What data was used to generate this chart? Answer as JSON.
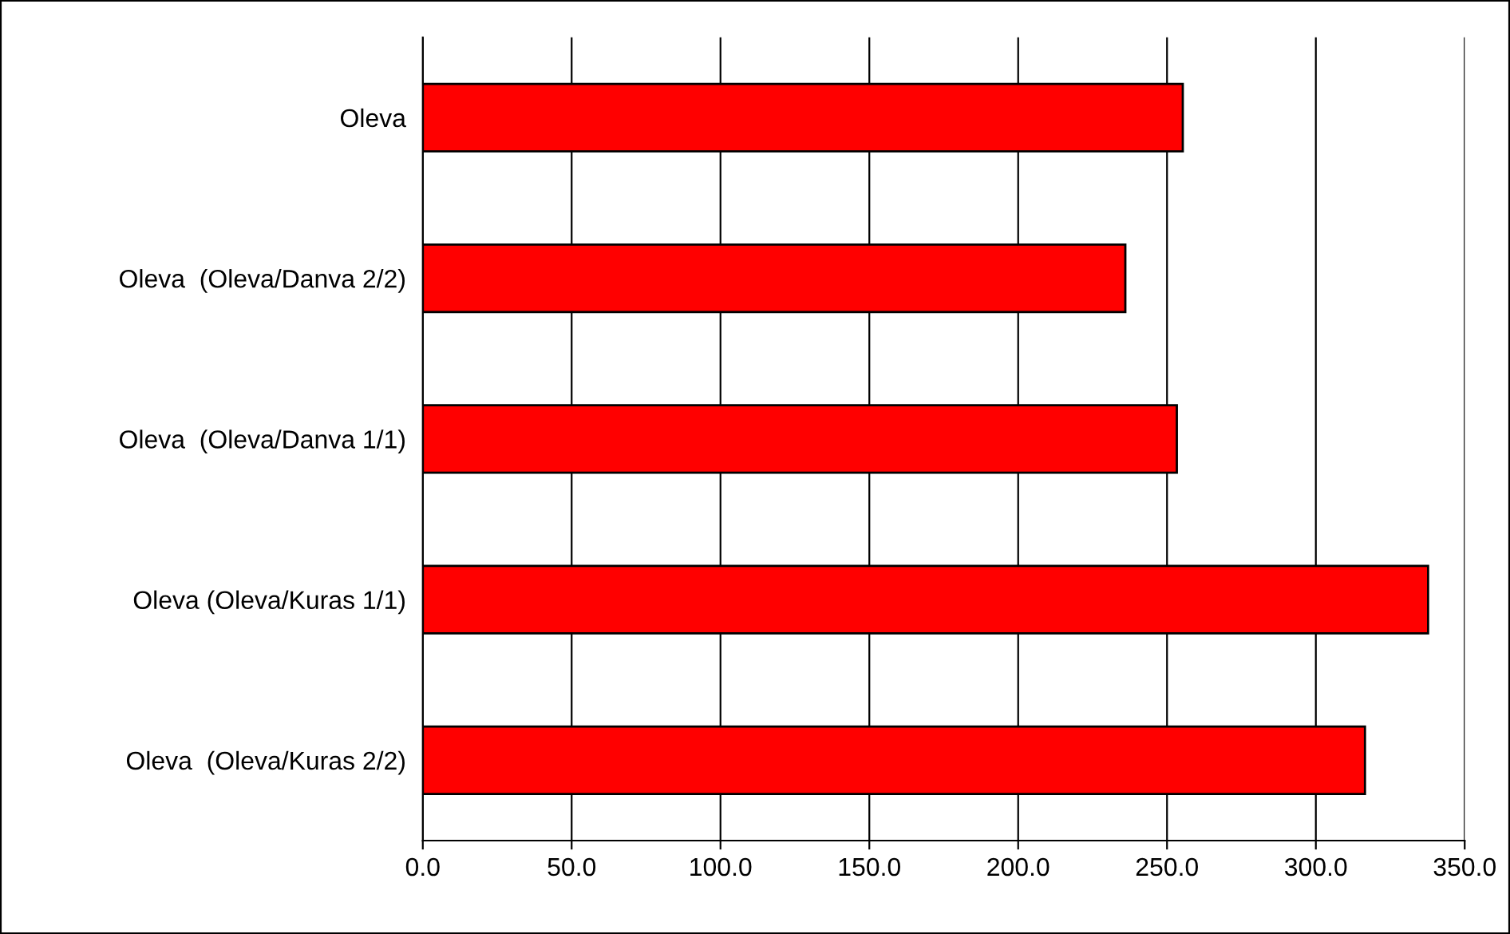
{
  "chart_data": {
    "type": "bar",
    "orientation": "horizontal",
    "categories": [
      "Oleva",
      "Oleva  (Oleva/Danva 2/2)",
      "Oleva  (Oleva/Danva 1/1)",
      "Oleva (Oleva/Kuras 1/1)",
      "Oleva  (Oleva/Kuras 2/2)"
    ],
    "values": [
      255.3,
      236.0,
      253.3,
      337.7,
      316.5
    ],
    "color": "#ff0000",
    "xlim": [
      0,
      350
    ],
    "xticks": [
      {
        "value": 0,
        "label": "0.0"
      },
      {
        "value": 50,
        "label": "50.0"
      },
      {
        "value": 100,
        "label": "100.0"
      },
      {
        "value": 150,
        "label": "150.0"
      },
      {
        "value": 200,
        "label": "200.0"
      },
      {
        "value": 250,
        "label": "250.0"
      },
      {
        "value": 300,
        "label": "300.0"
      },
      {
        "value": 350,
        "label": "350.0"
      }
    ],
    "grid": "x"
  }
}
